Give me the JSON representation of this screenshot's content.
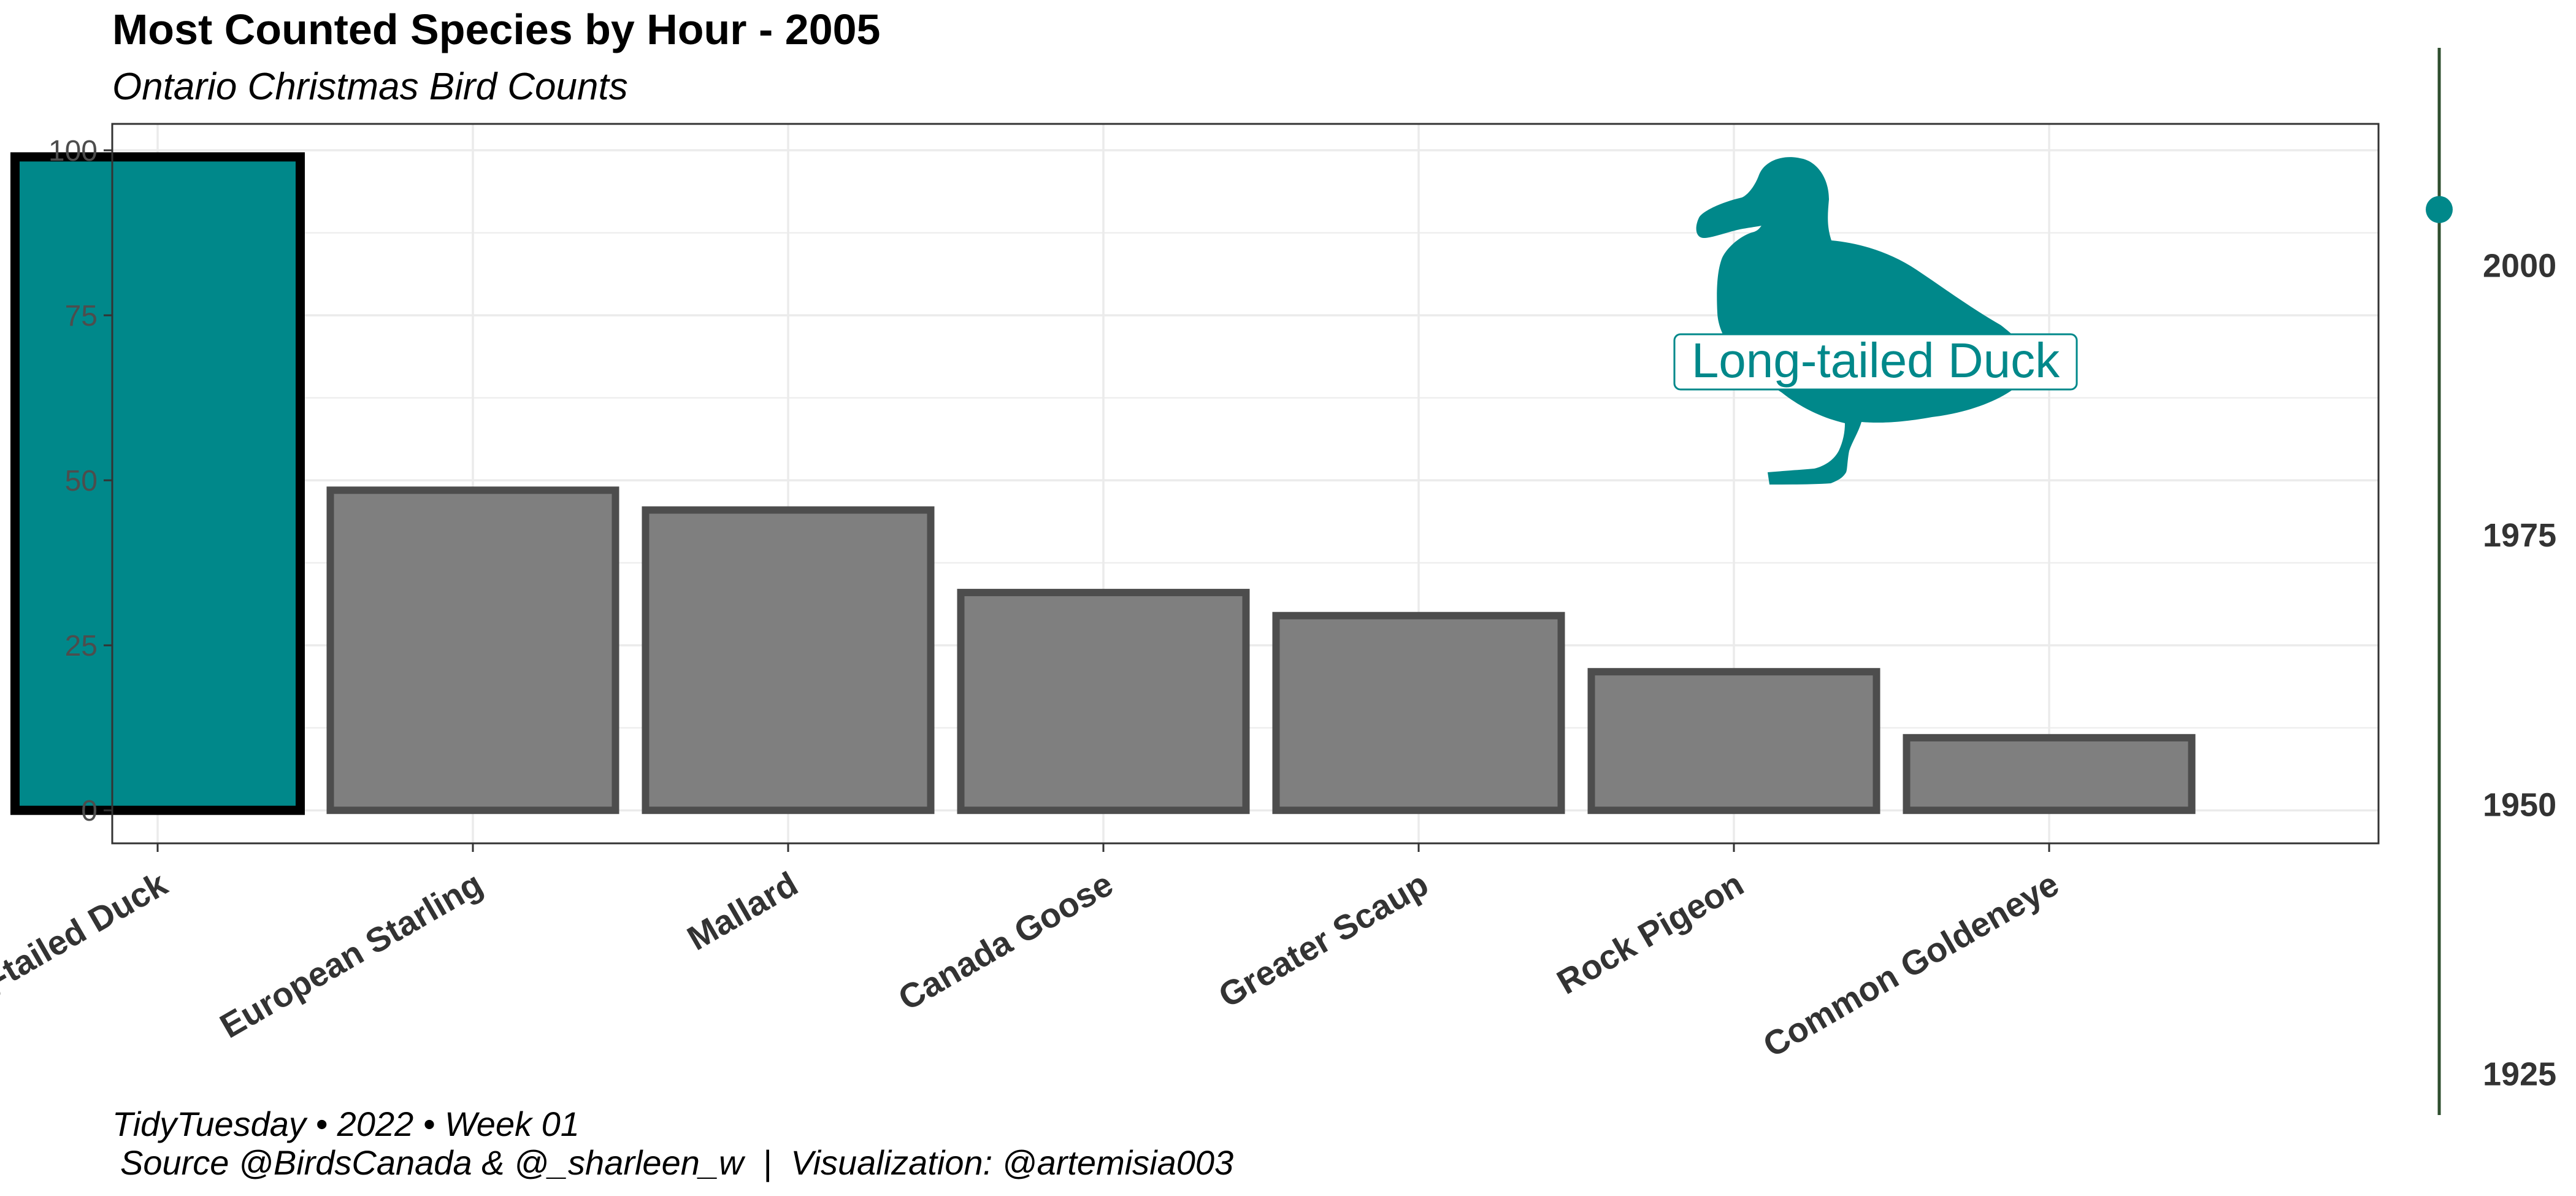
{
  "title": "Most Counted Species by Hour - 2005",
  "subtitle": "Ontario Christmas Bird Counts",
  "caption_line1": "TidyTuesday • 2022 • Week 01",
  "caption_line2": "Source @BirdsCanada & @_sharleen_w  |  Visualization: @artemisia003",
  "colors": {
    "highlight": "#00888a",
    "bar_fill": "#7f7f7f",
    "bar_outline": "#4d4d4d",
    "highlight_outline": "#000000",
    "grid": "#ebebeb",
    "panel_border": "#333333",
    "timeline": "#2f4f2f"
  },
  "chart_data": {
    "type": "bar",
    "title": "Most Counted Species by Hour - 2005",
    "xlabel": "",
    "ylabel": "",
    "categories": [
      "Long-tailed Duck",
      "European Starling",
      "Mallard",
      "Canada Goose",
      "Greater Scaup",
      "Rock Pigeon",
      "Common Goldeneye"
    ],
    "values": [
      99,
      48.5,
      45.5,
      33,
      29.5,
      21,
      11
    ],
    "highlighted": "Long-tailed Duck",
    "ylim": [
      -5,
      104
    ],
    "yticks": [
      0,
      25,
      50,
      75,
      100
    ],
    "ytick_labels": [
      "0",
      "25",
      "50",
      "75",
      "100"
    ],
    "grid": true,
    "annotation": {
      "label": "Long-tailed Duck",
      "icon": "duck-silhouette-icon"
    },
    "timeline": {
      "range": [
        1921,
        2020
      ],
      "ticks": [
        1925,
        1950,
        1975,
        2000
      ],
      "tick_labels": [
        "1925",
        "1950",
        "1975",
        "2000"
      ],
      "current": 2005
    }
  }
}
